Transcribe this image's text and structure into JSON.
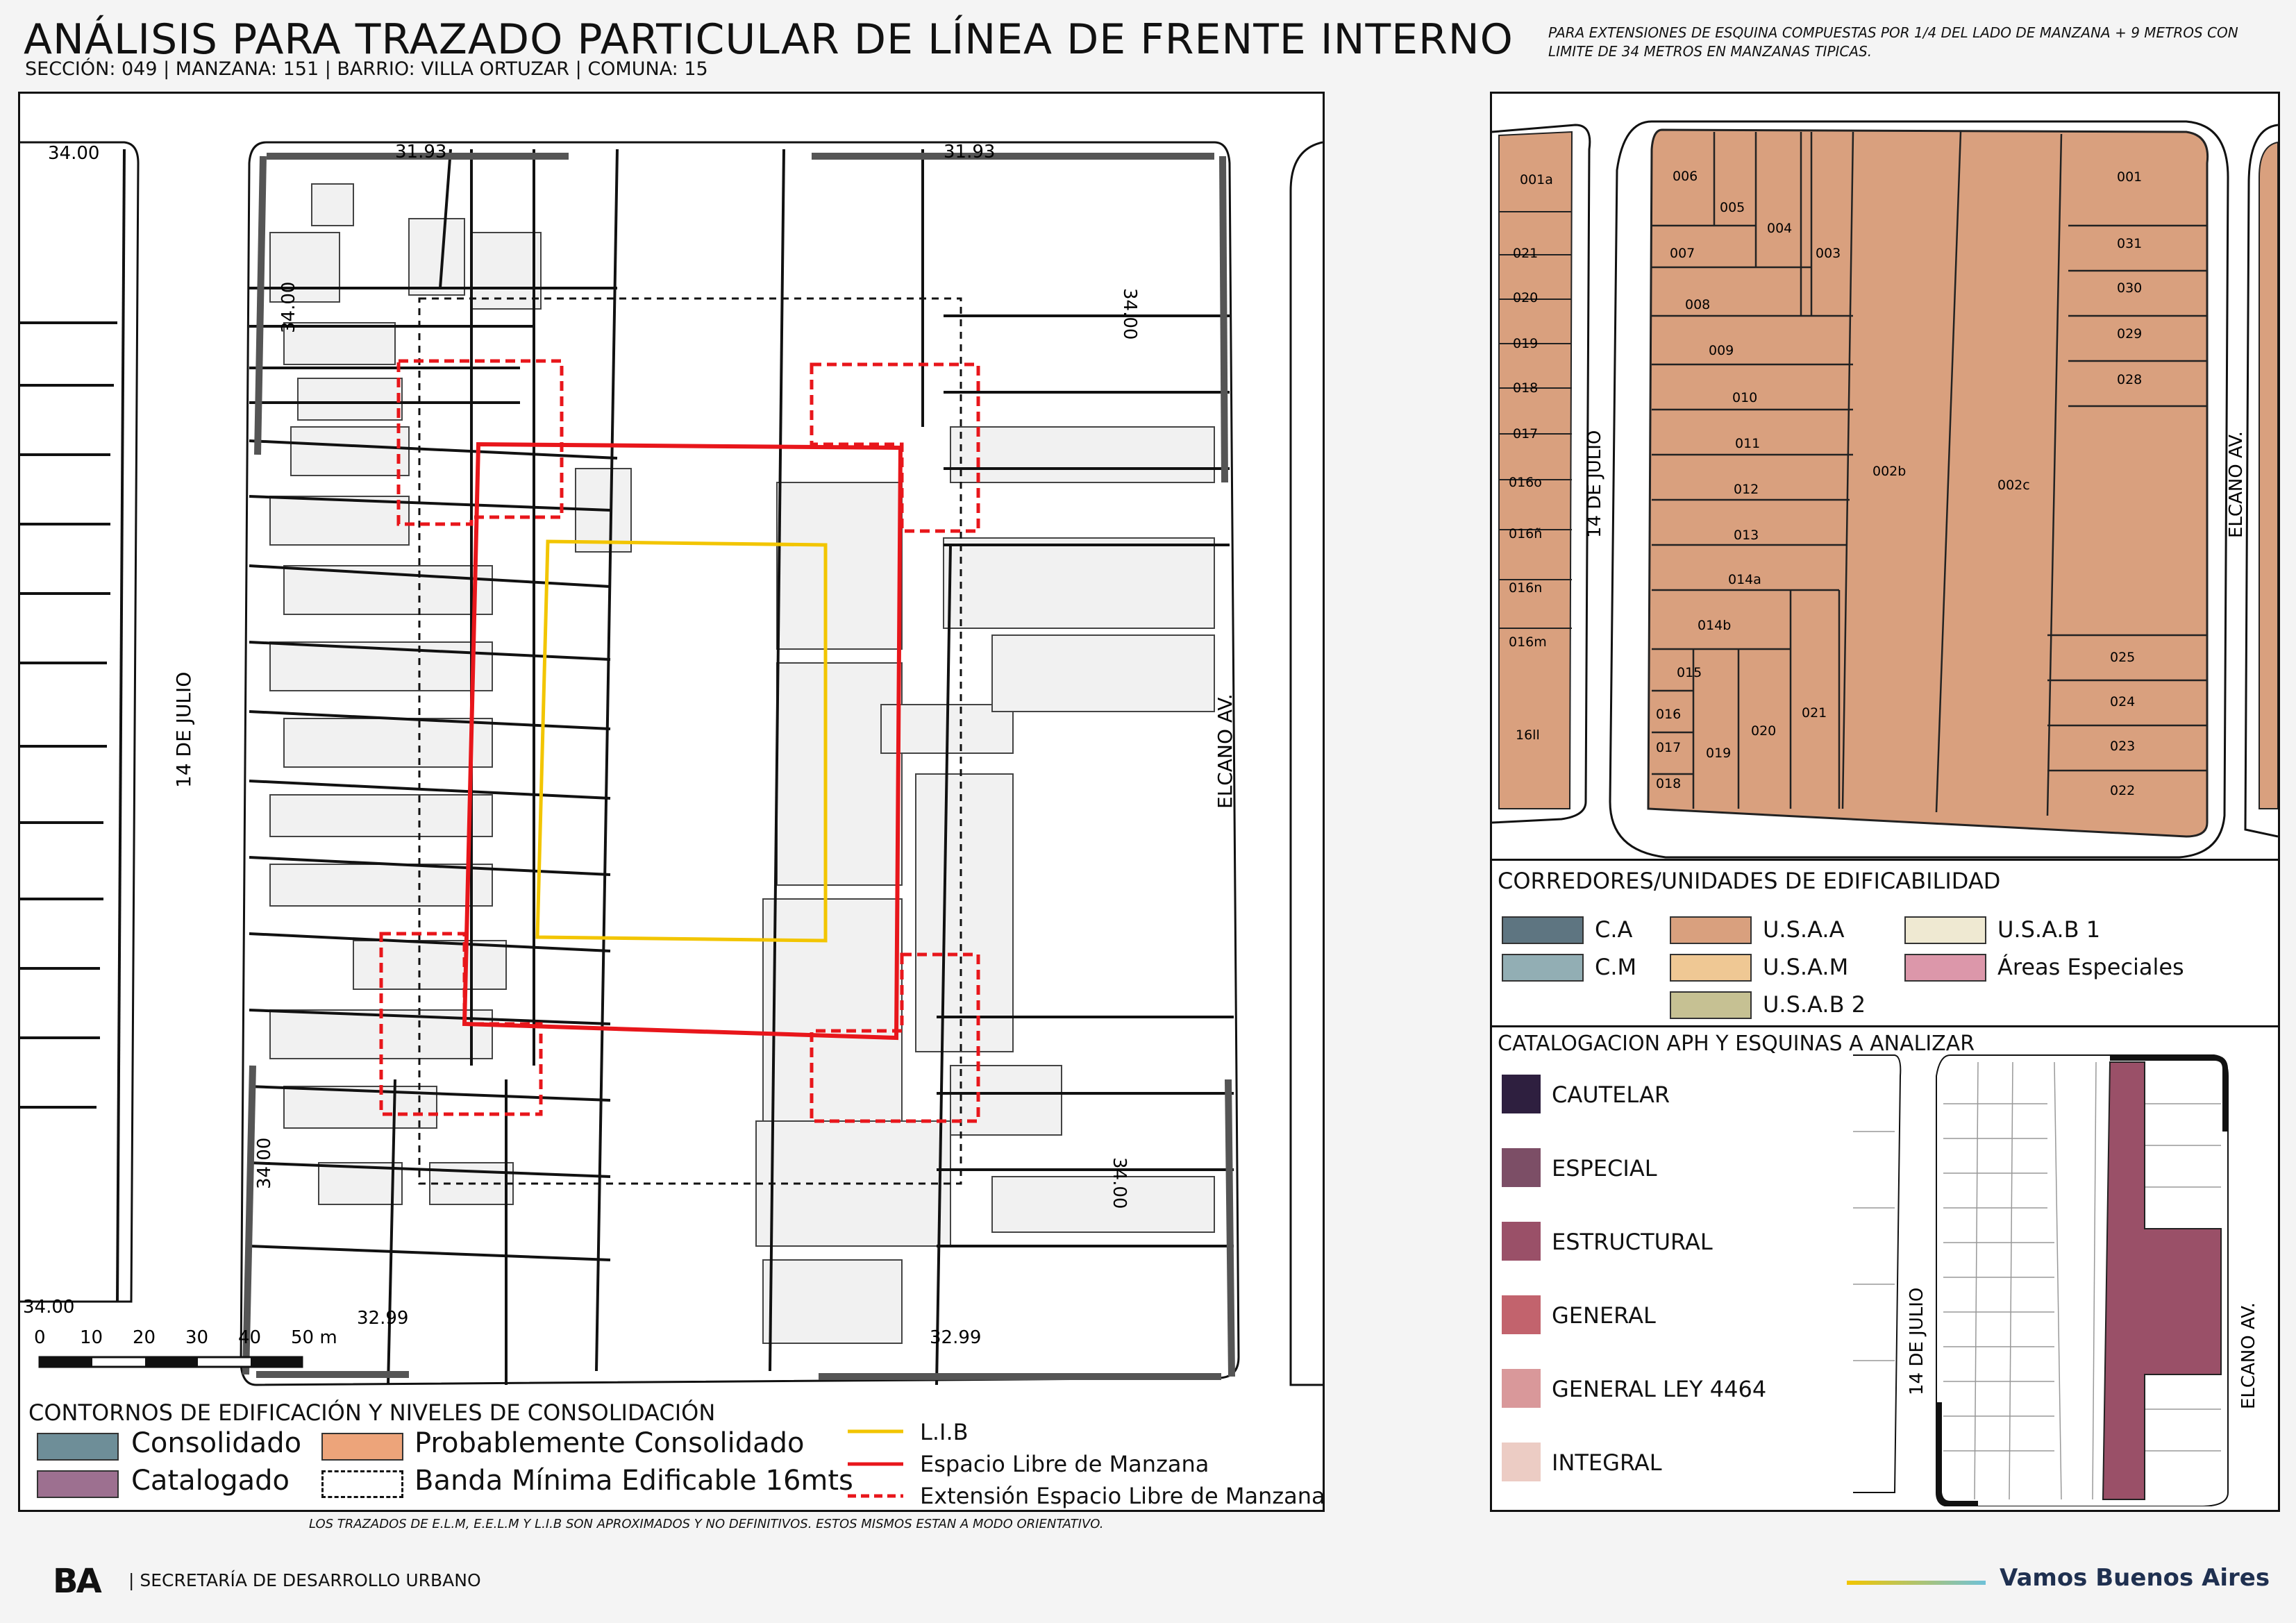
{
  "header": {
    "title": "ANÁLISIS PARA TRAZADO PARTICULAR DE LÍNEA DE FRENTE INTERNO",
    "subtitle": "SECCIÓN: 049 |  MANZANA: 151 | BARRIO: VILLA ORTUZAR | COMUNA: 15",
    "note": "PARA EXTENSIONES DE ESQUINA COMPUESTAS POR 1/4 DEL LADO DE MANZANA + 9 METROS CON LIMITE DE 34 METROS EN MANZANAS TIPICAS."
  },
  "main_map": {
    "streets": {
      "left": "14 DE JULIO",
      "right": "ELCANO AV."
    },
    "dimensions": {
      "top_left": "31.93",
      "top_right": "31.93",
      "bottom_left": "32.99",
      "bottom_right": "32.99",
      "side": "34.00"
    },
    "scale": {
      "ticks": [
        "0",
        "10",
        "20",
        "30",
        "40",
        "50 m"
      ]
    }
  },
  "legend_main": {
    "title": "CONTORNOS DE EDIFICACIÓN Y NIVELES DE CONSOLIDACIÓN",
    "items": [
      {
        "label": "Consolidado",
        "color": "#6e8e98"
      },
      {
        "label": "Probablemente Consolidado",
        "color": "#eda47a"
      },
      {
        "label": "Catalogado",
        "color": "#9d7090"
      },
      {
        "label": "Banda Mínima Edificable 16mts",
        "color": "#ffffff"
      }
    ],
    "lines": [
      {
        "label": "L.I.B",
        "color": "#f2c500"
      },
      {
        "label": "Espacio Libre de Manzana",
        "color": "#e8161b"
      },
      {
        "label": "Extensión Espacio Libre de Manzana",
        "color": "#e8161b"
      }
    ]
  },
  "parcel_map": {
    "streets": {
      "left": "14 DE JULIO",
      "right": "ELCANO AV."
    },
    "fill": "#d9a07e",
    "parcels": [
      "006",
      "005",
      "004",
      "003",
      "007",
      "008",
      "009",
      "010",
      "011",
      "012",
      "013",
      "014a",
      "014b",
      "015",
      "016",
      "017",
      "018",
      "019",
      "020",
      "021",
      "002b",
      "002c",
      "001",
      "031",
      "030",
      "029",
      "028",
      "025",
      "024",
      "023",
      "022"
    ],
    "left_block": [
      "001a",
      "021",
      "020",
      "019",
      "018",
      "017",
      "016o",
      "016ñ",
      "016n",
      "016m",
      "16ll"
    ]
  },
  "legend_corr": {
    "title": "CORREDORES/UNIDADES DE EDIFICABILIDAD",
    "items": [
      {
        "label": "C.A",
        "color": "#5e7581"
      },
      {
        "label": "C.M",
        "color": "#92aeb4"
      },
      {
        "label": "U.S.A.A",
        "color": "#d9a07e"
      },
      {
        "label": "U.S.A.M",
        "color": "#efc894"
      },
      {
        "label": "U.S.A.B 2",
        "color": "#c6c193"
      },
      {
        "label": "U.S.A.B 1",
        "color": "#efe9d2"
      },
      {
        "label": "Áreas Especiales",
        "color": "#dc97aa"
      }
    ]
  },
  "legend_aph": {
    "title": "CATALOGACION APH Y ESQUINAS A ANALIZAR",
    "items": [
      {
        "label": "CAUTELAR",
        "color": "#2e1f3f"
      },
      {
        "label": "ESPECIAL",
        "color": "#7c4e66"
      },
      {
        "label": "ESTRUCTURAL",
        "color": "#9a5068"
      },
      {
        "label": "GENERAL",
        "color": "#c2636d"
      },
      {
        "label": "GENERAL LEY 4464",
        "color": "#d9989a"
      },
      {
        "label": "INTEGRAL",
        "color": "#ecccc4"
      }
    ],
    "streets": {
      "left": "14 DE JULIO",
      "right": "ELCANO AV."
    }
  },
  "footer": {
    "disclaimer": "LOS TRAZADOS DE E.L.M, E.E.L.M Y L.I.B SON APROXIMADOS Y NO DEFINITIVOS. ESTOS MISMOS ESTAN A MODO ORIENTATIVO.",
    "logo": "BA",
    "secretaria": "| SECRETARÍA DE DESARROLLO URBANO",
    "brand": "Vamos Buenos Aires"
  }
}
